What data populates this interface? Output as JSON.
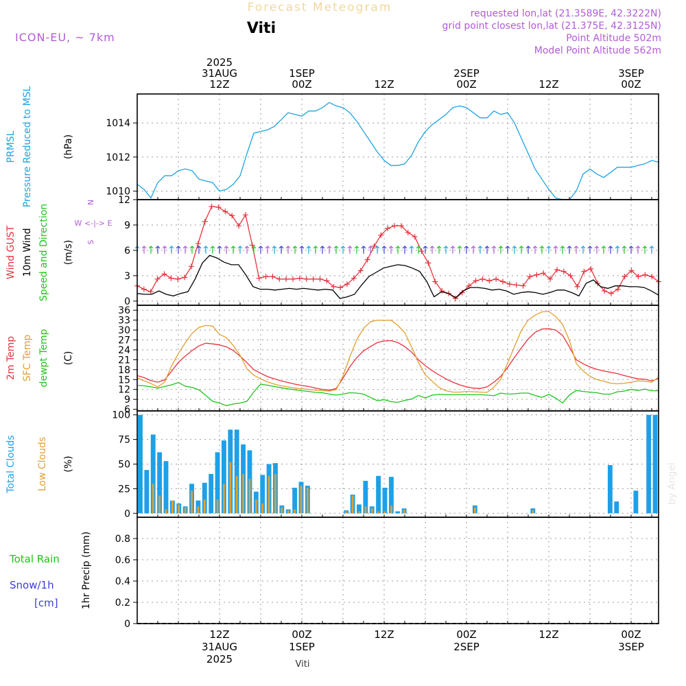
{
  "header": {
    "top_title": "Forecast Meteogram",
    "location": "Viti",
    "model": "ICON-EU, ~ 7km",
    "requested": "requested lon,lat (21.3589E, 42.3222N)",
    "grid_point": "grid point closest lon,lat (21.375E, 42.3125N)",
    "point_alt": "Point Altitude 502m",
    "model_alt": "Model Point Altitude 562m",
    "watermark": "by Angel",
    "bottom_location": "Viti"
  },
  "time_axis": {
    "top_labels": [
      {
        "t": 12,
        "lines": [
          "2025",
          "31AUG",
          "12Z"
        ]
      },
      {
        "t": 24,
        "lines": [
          "1SEP",
          "00Z"
        ]
      },
      {
        "t": 36,
        "lines": [
          "12Z"
        ]
      },
      {
        "t": 48,
        "lines": [
          "2SEP",
          "00Z"
        ]
      },
      {
        "t": 60,
        "lines": [
          "12Z"
        ]
      },
      {
        "t": 72,
        "lines": [
          "3SEP",
          "00Z"
        ]
      }
    ],
    "bottom_labels": [
      {
        "t": 12,
        "lines": [
          "12Z",
          "31AUG",
          "2025"
        ]
      },
      {
        "t": 24,
        "lines": [
          "00Z",
          "1SEP"
        ]
      },
      {
        "t": 36,
        "lines": [
          "12Z"
        ]
      },
      {
        "t": 48,
        "lines": [
          "00Z",
          "2SEP"
        ]
      },
      {
        "t": 60,
        "lines": [
          "12Z"
        ]
      },
      {
        "t": 72,
        "lines": [
          "00Z",
          "3SEP"
        ]
      }
    ]
  },
  "colors": {
    "pressure": "#1da3e0",
    "gust": "#e8323c",
    "wind": "#000000",
    "green": "#1cc41c",
    "temp": "#e8323c",
    "sfc": "#e0a030",
    "dew": "#1cc41c",
    "total_cloud": "#1ea0e8",
    "low_cloud": "#e0a030",
    "purple": "#b25bd6",
    "title": "#f0d8a0",
    "rain": "#1cc41c",
    "snow": "#3c3cdc"
  },
  "chart_data": [
    {
      "name": "pressure",
      "type": "line",
      "ylabel_lines": [
        "PRMSL",
        "Pressure Reduced to MSL"
      ],
      "unit": "(hPa)",
      "ylim": [
        1009.5,
        1015.7
      ],
      "yticks": [
        1010,
        1012,
        1014
      ],
      "series": [
        {
          "name": "PRMSL",
          "values": [
            1010.4,
            1010.1,
            1009.6,
            1010.5,
            1010.9,
            1010.9,
            1011.2,
            1011.3,
            1011.2,
            1010.7,
            1010.6,
            1010.5,
            1010.0,
            1010.1,
            1010.4,
            1010.9,
            1012.2,
            1013.4,
            1013.5,
            1013.6,
            1013.8,
            1014.2,
            1014.6,
            1014.5,
            1014.4,
            1014.7,
            1014.7,
            1014.9,
            1015.2,
            1015.0,
            1014.9,
            1014.6,
            1014.1,
            1013.5,
            1012.9,
            1012.3,
            1011.8,
            1011.5,
            1011.5,
            1011.6,
            1012.1,
            1012.9,
            1013.5,
            1013.9,
            1014.2,
            1014.5,
            1014.9,
            1015.0,
            1014.9,
            1014.6,
            1014.3,
            1014.3,
            1014.7,
            1014.5,
            1014.6,
            1014.0,
            1013.1,
            1012.2,
            1011.3,
            1010.7,
            1010.1,
            1009.6,
            1009.5,
            1009.5,
            1010.0,
            1011.0,
            1011.3,
            1011.0,
            1010.8,
            1011.1,
            1011.4,
            1011.4,
            1011.4,
            1011.5,
            1011.6,
            1011.8,
            1011.7
          ]
        }
      ]
    },
    {
      "name": "wind",
      "type": "line",
      "ylabel_lines": [
        "Wind GUST",
        "10m Wind",
        "Speed and Direction"
      ],
      "unit": "(m/s)",
      "compass": [
        "N",
        "W <-|-> E",
        "S"
      ],
      "ylim": [
        -0.5,
        12
      ],
      "yticks": [
        0,
        3,
        6,
        9,
        12
      ],
      "series": [
        {
          "name": "Wind GUST",
          "values": [
            1.8,
            1.4,
            1.1,
            2.6,
            3.2,
            2.7,
            2.6,
            2.8,
            4.1,
            6.8,
            9.4,
            11.2,
            11.1,
            10.6,
            10.1,
            8.9,
            10.2,
            6.6,
            2.7,
            2.9,
            2.9,
            2.6,
            2.6,
            2.6,
            2.7,
            2.6,
            2.6,
            2.6,
            2.4,
            1.7,
            1.6,
            2.0,
            2.7,
            3.6,
            4.9,
            6.5,
            7.8,
            8.6,
            8.9,
            8.9,
            8.1,
            7.6,
            5.9,
            4.5,
            2.3,
            1.2,
            0.9,
            0.3,
            1.0,
            1.8,
            2.4,
            2.6,
            2.4,
            2.6,
            2.3,
            2.0,
            1.9,
            1.8,
            2.9,
            3.1,
            3.3,
            2.6,
            3.7,
            3.5,
            3.0,
            1.7,
            3.5,
            3.8,
            2.1,
            1.2,
            0.9,
            1.4,
            2.9,
            3.6,
            2.9,
            3.1,
            2.9,
            2.3
          ]
        },
        {
          "name": "10m Wind",
          "values": [
            0.9,
            0.8,
            0.8,
            1.2,
            0.8,
            0.6,
            0.9,
            1.1,
            2.6,
            4.5,
            5.4,
            5.1,
            4.6,
            4.3,
            4.3,
            3.1,
            1.7,
            1.4,
            1.4,
            1.3,
            1.4,
            1.5,
            1.4,
            1.5,
            1.4,
            1.3,
            1.4,
            1.3,
            0.3,
            0.5,
            0.8,
            1.9,
            2.9,
            3.4,
            3.9,
            4.1,
            4.3,
            4.2,
            3.9,
            3.5,
            2.3,
            0.5,
            1.1,
            0.9,
            0.4,
            1.2,
            1.6,
            1.6,
            1.5,
            1.3,
            1.4,
            1.2,
            0.8,
            1.0,
            1.1,
            1.0,
            0.8,
            1.0,
            1.3,
            1.3,
            1.0,
            0.6,
            2.1,
            2.5,
            1.7,
            1.5,
            1.8,
            1.8,
            1.7,
            1.7,
            1.6,
            1.2,
            0.7
          ]
        }
      ]
    },
    {
      "name": "temperature",
      "type": "line",
      "ylabel_lines": [
        "2m Temp",
        "SFC Temp",
        "dewpt Temp"
      ],
      "unit": "(C)",
      "ylim": [
        5.5,
        37.5
      ],
      "yticks": [
        6,
        9,
        12,
        15,
        18,
        21,
        24,
        27,
        30,
        33,
        36
      ],
      "series": [
        {
          "name": "2m Temp",
          "values": [
            16.2,
            15.6,
            14.7,
            14.2,
            14.9,
            17.5,
            20.2,
            22.1,
            23.8,
            25.2,
            26.0,
            25.8,
            25.5,
            24.9,
            23.8,
            22.1,
            20.1,
            18.0,
            16.9,
            15.9,
            15.2,
            14.6,
            14.1,
            13.6,
            13.2,
            12.9,
            12.4,
            12.0,
            11.8,
            12.3,
            15.4,
            18.9,
            21.6,
            23.7,
            25.0,
            26.2,
            26.7,
            26.8,
            26.2,
            25.0,
            23.3,
            21.0,
            19.2,
            17.7,
            16.4,
            15.2,
            14.2,
            13.4,
            12.8,
            12.4,
            12.3,
            12.8,
            14.2,
            16.0,
            18.7,
            21.7,
            24.6,
            27.3,
            29.3,
            30.3,
            30.4,
            30.0,
            28.4,
            24.9,
            21.0,
            19.8,
            18.8,
            18.1,
            17.6,
            17.2,
            16.8,
            16.2,
            15.7,
            15.2,
            15.1,
            14.6,
            15.3
          ]
        },
        {
          "name": "SFC Temp",
          "values": [
            15.5,
            14.6,
            13.8,
            12.8,
            14.2,
            19.1,
            22.9,
            26.1,
            29.0,
            30.8,
            31.4,
            31.2,
            28.7,
            27.7,
            25.3,
            22.4,
            18.2,
            16.3,
            15.2,
            14.3,
            13.6,
            13.1,
            12.8,
            12.4,
            12.2,
            12.0,
            11.8,
            11.6,
            11.5,
            11.9,
            16.1,
            21.9,
            27.1,
            30.5,
            32.5,
            33.0,
            32.9,
            33.0,
            31.4,
            29.2,
            24.9,
            20.2,
            16.4,
            14.5,
            12.6,
            11.6,
            11.2,
            11.2,
            11.4,
            11.3,
            11.2,
            11.1,
            12.7,
            15.1,
            20.0,
            25.0,
            29.9,
            33.0,
            34.5,
            35.5,
            35.6,
            34.1,
            31.7,
            26.9,
            19.9,
            17.6,
            16.0,
            15.0,
            14.5,
            13.9,
            13.7,
            13.9,
            14.2,
            14.6,
            14.5,
            14.2,
            15.7
          ]
        },
        {
          "name": "dewpt Temp",
          "values": [
            13.2,
            13.1,
            12.8,
            12.4,
            12.9,
            13.4,
            14.1,
            13.0,
            12.6,
            11.9,
            10.2,
            8.4,
            7.9,
            7.1,
            7.6,
            7.9,
            8.4,
            11.3,
            13.6,
            13.3,
            12.9,
            12.5,
            12.2,
            11.9,
            11.6,
            11.4,
            11.1,
            11.0,
            10.6,
            10.3,
            10.6,
            11.0,
            10.9,
            10.6,
            9.6,
            8.6,
            8.9,
            8.3,
            8.1,
            8.7,
            9.1,
            10.2,
            9.4,
            10.3,
            10.5,
            10.4,
            10.4,
            10.4,
            10.4,
            10.4,
            10.4,
            10.3,
            10.1,
            10.9,
            10.6,
            10.7,
            10.9,
            10.9,
            10.2,
            9.6,
            10.5,
            9.4,
            7.9,
            10.3,
            11.7,
            11.4,
            11.2,
            11.0,
            10.6,
            10.6,
            11.3,
            11.5,
            12.0,
            11.7,
            12.1,
            11.6,
            11.6
          ]
        }
      ]
    },
    {
      "name": "clouds",
      "type": "bar",
      "ylabel_lines": [
        "Total Clouds",
        "Low Clouds"
      ],
      "unit": "(%)",
      "ylim": [
        -4,
        104
      ],
      "yticks": [
        0,
        25,
        50,
        75,
        100
      ],
      "series": [
        {
          "name": "Total Clouds",
          "values": [
            100,
            44,
            80,
            62,
            53,
            13,
            10,
            7,
            30,
            13,
            31,
            40,
            62,
            74,
            85,
            85,
            70,
            64,
            22,
            39,
            50,
            51,
            8,
            4,
            26,
            32,
            28,
            0,
            0,
            0,
            0,
            0,
            3,
            19,
            9,
            33,
            7,
            38,
            26,
            37,
            2,
            5,
            0,
            0,
            0,
            0,
            0,
            0,
            0,
            0,
            0,
            0,
            8,
            0,
            0,
            0,
            0,
            0,
            0,
            0,
            0,
            5,
            0,
            0,
            0,
            0,
            0,
            0,
            0,
            0,
            0,
            0,
            0,
            49,
            12,
            0,
            0,
            23,
            0,
            100,
            100
          ]
        },
        {
          "name": "Low Clouds",
          "values": [
            0,
            0,
            30,
            18,
            4,
            13,
            9,
            6,
            23,
            7,
            14,
            0,
            14,
            30,
            52,
            38,
            40,
            35,
            14,
            10,
            38,
            40,
            6,
            3,
            4,
            28,
            26,
            0,
            0,
            0,
            0,
            0,
            2,
            18,
            2,
            7,
            5,
            2,
            2,
            8,
            0,
            4,
            0,
            0,
            0,
            0,
            0,
            0,
            0,
            0,
            0,
            0,
            6,
            0,
            0,
            0,
            0,
            0,
            0,
            0,
            0,
            3,
            0,
            0,
            0,
            0,
            0,
            0,
            0,
            0,
            0,
            0,
            0,
            0,
            0,
            0,
            0,
            0,
            0,
            0,
            0
          ]
        }
      ]
    },
    {
      "name": "precip",
      "type": "line",
      "ylabel_lines": [
        "1hr Precip (mm)"
      ],
      "legend": [
        {
          "label": "Total   Rain",
          "color": "green"
        },
        {
          "label": "Snow/1h",
          "color": "snow"
        },
        {
          "label": "[cm]",
          "color": "snow"
        }
      ],
      "ylim": [
        0,
        1.0
      ],
      "yticks": [
        0,
        0.2,
        0.4,
        0.6,
        0.8
      ],
      "series": [
        {
          "name": "Total Rain",
          "values": [
            0,
            0,
            0,
            0,
            0,
            0,
            0,
            0,
            0,
            0,
            0,
            0,
            0,
            0,
            0,
            0,
            0,
            0,
            0,
            0,
            0,
            0,
            0,
            0,
            0,
            0,
            0,
            0,
            0,
            0,
            0,
            0,
            0,
            0,
            0,
            0,
            0,
            0,
            0,
            0,
            0,
            0,
            0,
            0,
            0,
            0,
            0,
            0,
            0,
            0,
            0,
            0,
            0,
            0,
            0,
            0,
            0,
            0,
            0,
            0,
            0,
            0,
            0,
            0,
            0,
            0,
            0,
            0,
            0,
            0,
            0,
            0,
            0,
            0,
            0,
            0,
            0
          ]
        }
      ]
    }
  ]
}
